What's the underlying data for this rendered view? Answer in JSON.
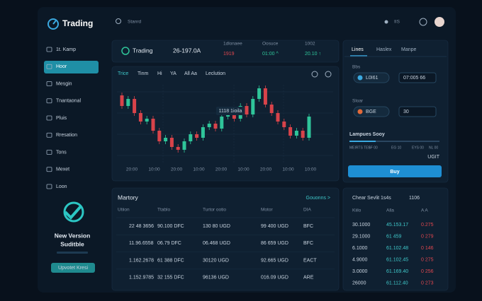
{
  "sidebar": {
    "logo": "Trading",
    "menu": [
      "1t. Kamp",
      "Hoor",
      "Mesgin",
      "Tnantaonal",
      "Pluis",
      "Rresation",
      "Tons",
      "Mexet",
      "Loon"
    ],
    "promo": {
      "title": "New Version",
      "subtitle": "Suditble",
      "button": "Upvotet Kresi"
    }
  },
  "topbar": {
    "search": "Stanrd",
    "user": "IIS"
  },
  "ticker": {
    "name": "Trading",
    "price": "26-197.0A",
    "stats": [
      {
        "label": "1dlonaee",
        "value": "1919"
      },
      {
        "label": "Oosuce",
        "value": "01:00 ^"
      },
      {
        "label": "1002",
        "value": "20.10 ↑"
      }
    ]
  },
  "chart": {
    "tabs": [
      "Trice",
      "Tinm",
      "Hi",
      "YA",
      "All Aa",
      "Leclution"
    ],
    "tooltip": "1118 1ioila",
    "x_labels": [
      "20:00",
      "10:00",
      "20:00",
      "10:00",
      "20:00",
      "10:00",
      "20:00",
      "10:00",
      "10:00"
    ]
  },
  "order": {
    "tabs": [
      "Lines",
      "Haslex",
      "Manpe"
    ],
    "fields": [
      {
        "label": "Bbs",
        "asset": "L0I61",
        "value": "07:005 66"
      },
      {
        "label": "Sloar",
        "asset": "BGE",
        "value": "30"
      }
    ],
    "slider": {
      "label": "Lampues Sooy",
      "ticks": [
        "MEIRTS TES",
        "6F 00",
        "EG 10",
        "EYS 00",
        "NL 00"
      ],
      "max": "UGIT"
    },
    "button": "Buy"
  },
  "history": {
    "title": "Martory",
    "link": "Gouonns >",
    "headers": [
      "Utiion",
      "Ttablo",
      "Turtor ootio",
      "Motor",
      "DIA"
    ],
    "rows": [
      [
        "22 48 3656",
        "90.100 DFC",
        "130 80 UGD",
        "99 400 UGD",
        "BFC"
      ],
      [
        "11.96.6558",
        "06.79 DFC",
        "06.468 UGD",
        "86 659 UGD",
        "BFC"
      ],
      [
        "1.162.2678",
        "61 388 DFC",
        "30120 UGD",
        "92.665 UGD",
        "EACT"
      ],
      [
        "1.152.9785",
        "32 155 DFC",
        "96136 UGD",
        "016.09 UGD",
        "ARE"
      ]
    ]
  },
  "book": {
    "tabs": [
      "Chear Sevlit",
      "1s4s",
      "1106"
    ],
    "headers": [
      "Kiilo",
      "Alla",
      "A A"
    ],
    "rows": [
      [
        "30.1000",
        "45.153.17",
        "0.275"
      ],
      [
        "29.1000",
        "61 459",
        "0 279"
      ],
      [
        "6.1000",
        "61.102.48",
        "0 146"
      ],
      [
        "4.9000",
        "61.102.45",
        "0 275"
      ],
      [
        "3.0000",
        "61.169.40",
        "0 256"
      ],
      [
        "26000",
        "61.112.40",
        "0 273"
      ]
    ]
  }
}
